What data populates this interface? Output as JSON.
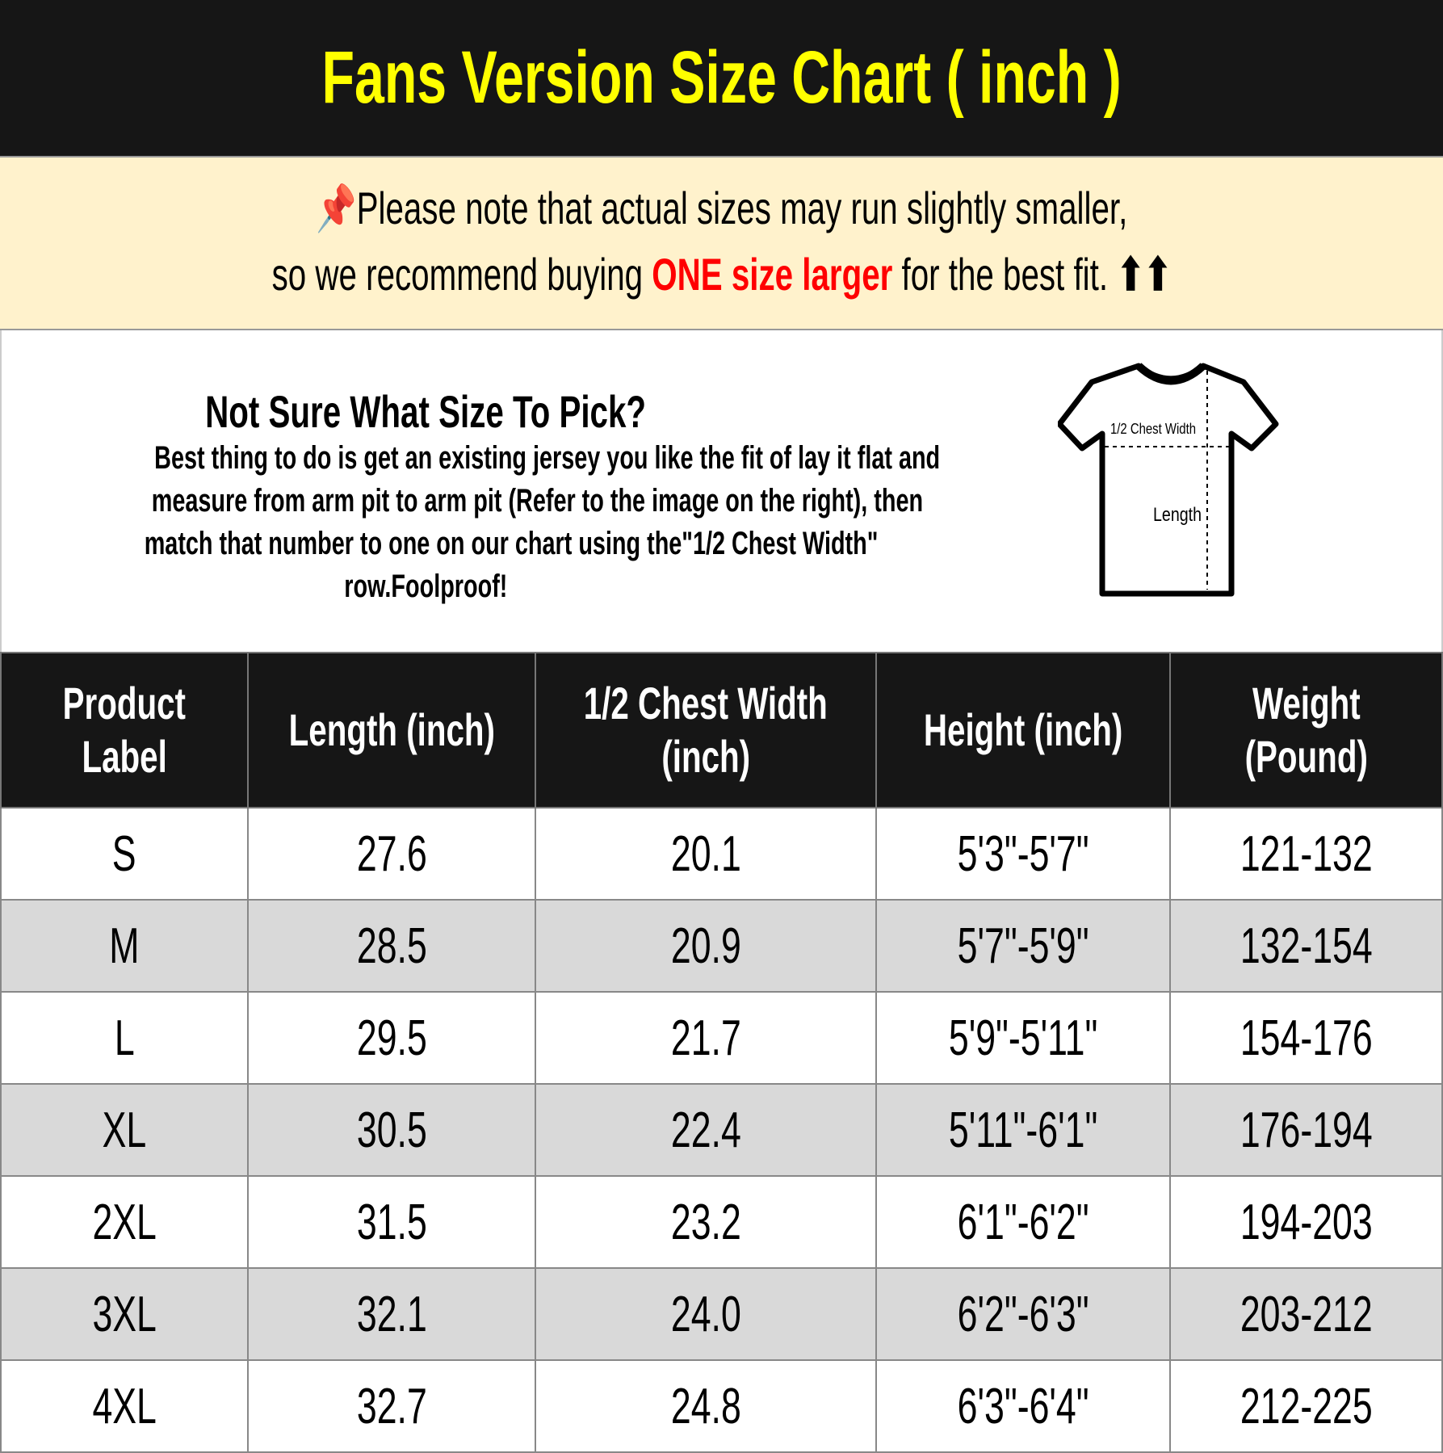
{
  "title": "Fans Version Size Chart ( inch )",
  "note": {
    "icon": "pushpin-icon",
    "line1": "Please note that actual sizes may run slightly smaller,",
    "line2_pre": "so we recommend buying ",
    "line2_highlight": "ONE size larger",
    "line2_post": " for the best fit.",
    "arrows": "⬆⬆"
  },
  "info": {
    "heading": "Not Sure What Size To Pick?",
    "lines": [
      "Best thing to do is get an existing jersey you like the fit of lay it flat and",
      "measure from arm pit to arm pit (Refer to the image on the right), then",
      "match that number to one on our chart using the\"1/2 Chest Width\"",
      "row.Foolproof!"
    ],
    "diagram": {
      "chest_label": "1/2 Chest Width",
      "length_label": "Length"
    }
  },
  "table": {
    "headers": [
      [
        "Product",
        "Label"
      ],
      [
        "Length (inch)"
      ],
      [
        "1/2 Chest Width",
        "(inch)"
      ],
      [
        "Height (inch)"
      ],
      [
        "Weight",
        "(Pound)"
      ]
    ],
    "rows": [
      [
        "S",
        "27.6",
        "20.1",
        "5'3\"-5'7\"",
        "121-132"
      ],
      [
        "M",
        "28.5",
        "20.9",
        "5'7\"-5'9\"",
        "132-154"
      ],
      [
        "L",
        "29.5",
        "21.7",
        "5'9\"-5'11\"",
        "154-176"
      ],
      [
        "XL",
        "30.5",
        "22.4",
        "5'11\"-6'1\"",
        "176-194"
      ],
      [
        "2XL",
        "31.5",
        "23.2",
        "6'1\"-6'2\"",
        "194-203"
      ],
      [
        "3XL",
        "32.1",
        "24.0",
        "6'2\"-6'3\"",
        "203-212"
      ],
      [
        "4XL",
        "32.7",
        "24.8",
        "6'3\"-6'4\"",
        "212-225"
      ]
    ]
  },
  "colors": {
    "title_bg": "#161616",
    "title_text": "#ffff00",
    "note_bg": "#fff2cc",
    "highlight": "#ff0000",
    "alt_row": "#d9d9d9"
  }
}
